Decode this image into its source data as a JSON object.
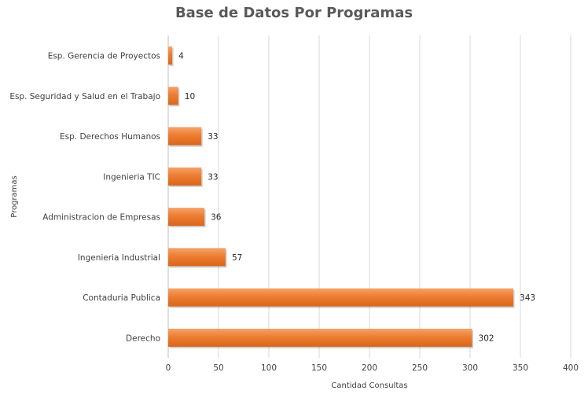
{
  "chart_data": {
    "type": "bar",
    "orientation": "horizontal",
    "title": "Base de Datos Por Programas",
    "xlabel": "Cantidad Consultas",
    "ylabel": "Programas",
    "xlim": [
      0,
      400
    ],
    "x_ticks": [
      0,
      50,
      100,
      150,
      200,
      250,
      300,
      350,
      400
    ],
    "grid": true,
    "legend": "none",
    "bar_color": "#ED7D31",
    "categories": [
      "Esp. Gerencia de Proyectos",
      "Esp. Seguridad y Salud en el Trabajo",
      "Esp. Derechos Humanos",
      "Ingenieria TIC",
      "Administracion de Empresas",
      "Ingenieria Industrial",
      "Contaduria Publica",
      "Derecho"
    ],
    "values": [
      4,
      10,
      33,
      33,
      36,
      57,
      343,
      302
    ]
  }
}
